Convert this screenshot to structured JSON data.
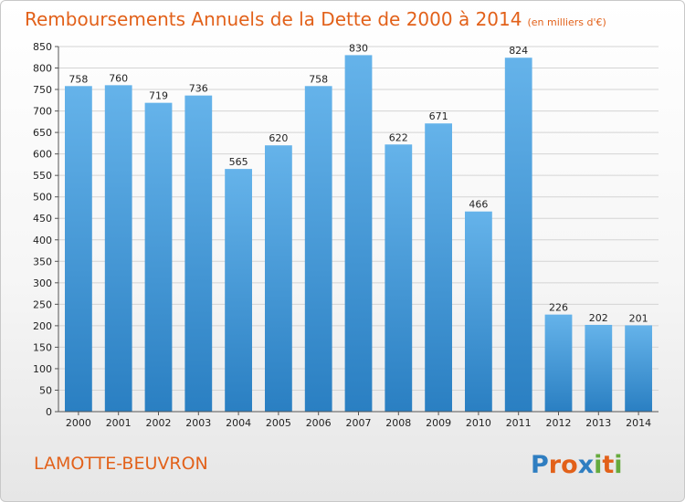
{
  "header": {
    "title": "Remboursements Annuels de la Dette de 2000 à 2014",
    "subtitle": "(en milliers d'€)"
  },
  "footer": {
    "city": "LAMOTTE-BEUVRON",
    "logo_text": "Proxiti"
  },
  "colors": {
    "title": "#e2611a",
    "bar_top": "#65b3ea",
    "bar_bottom": "#2a7fc2",
    "logo_letters": [
      "#2f7ec1",
      "#e2611a",
      "#e2611a",
      "#2f7ec1",
      "#66aa3d",
      "#e2611a",
      "#66aa3d"
    ]
  },
  "chart_data": {
    "type": "bar",
    "title": "Remboursements Annuels de la Dette de 2000 à 2014",
    "subtitle": "(en milliers d'€)",
    "xlabel": "",
    "ylabel": "",
    "categories": [
      "2000",
      "2001",
      "2002",
      "2003",
      "2004",
      "2005",
      "2006",
      "2007",
      "2008",
      "2009",
      "2010",
      "2011",
      "2012",
      "2013",
      "2014"
    ],
    "values": [
      758,
      760,
      719,
      736,
      565,
      620,
      758,
      830,
      622,
      671,
      466,
      824,
      226,
      202,
      201
    ],
    "ylim": [
      0,
      850
    ],
    "yticks": [
      0,
      50,
      100,
      150,
      200,
      250,
      300,
      350,
      400,
      450,
      500,
      550,
      600,
      650,
      700,
      750,
      800,
      850
    ],
    "grid": true,
    "data_labels": true
  }
}
